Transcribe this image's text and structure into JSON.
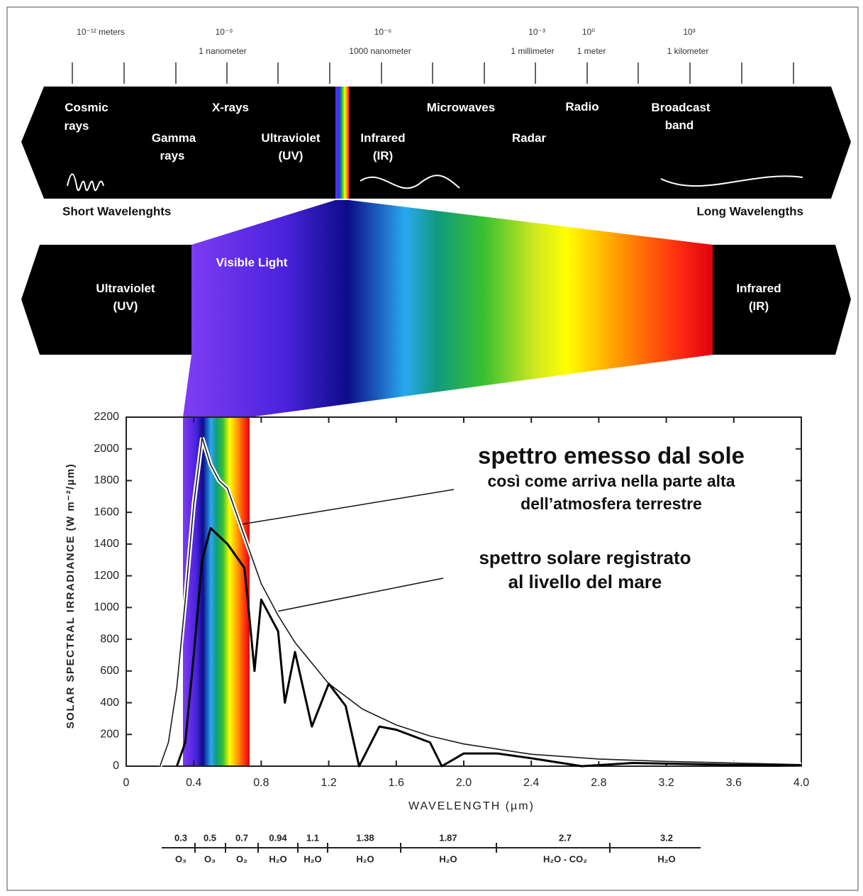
{
  "spectrum": {
    "scale": [
      {
        "power": "10⁻¹² meters"
      },
      {
        "power": "10⁻⁹",
        "unit": "1 nanometer"
      },
      {
        "power": "10⁻⁶",
        "unit": "1000 nanometer"
      },
      {
        "power": "10⁻³",
        "unit": "1 millimeter"
      },
      {
        "power": "10⁰",
        "unit": "1 meter"
      },
      {
        "power": "10³",
        "unit": "1 kilometer"
      }
    ],
    "bands": [
      {
        "lines": [
          "Cosmic",
          "rays"
        ]
      },
      {
        "lines": [
          "X-rays"
        ]
      },
      {
        "lines": [
          "Gamma",
          "rays"
        ]
      },
      {
        "lines": [
          "Ultraviolet",
          "(UV)"
        ]
      },
      {
        "lines": [
          "Infrared",
          "(IR)"
        ]
      },
      {
        "lines": [
          "Microwaves"
        ]
      },
      {
        "lines": [
          "Radar"
        ]
      },
      {
        "lines": [
          "Radio"
        ]
      },
      {
        "lines": [
          "Broadcast",
          "band"
        ]
      }
    ],
    "short": "Short Wavelenghts",
    "long": "Long Wavelengths"
  },
  "visible": {
    "title": "Visible Light",
    "left": [
      "Ultraviolet",
      "(UV)"
    ],
    "right": [
      "Infrared",
      "(IR)"
    ]
  },
  "chart_data": {
    "type": "line",
    "x_label": "WAVELENGTH (µm)",
    "y_label": "SOLAR SPECTRAL IRRADIANCE (W m⁻²/µm)",
    "xlim": [
      0,
      4
    ],
    "ylim": [
      0,
      2200
    ],
    "xticks": [
      0,
      0.4,
      0.8,
      1.2,
      1.6,
      {
        "value": 2,
        "label": "2.0"
      },
      2.4,
      2.8,
      3.2,
      3.6,
      {
        "value": 4,
        "label": "4.0"
      }
    ],
    "yticks": [
      0,
      200,
      400,
      600,
      800,
      1000,
      1200,
      1400,
      1600,
      1800,
      2000,
      2200
    ],
    "annotations": [
      {
        "title": "spettro emesso dal sole",
        "text": [
          "così come arriva nella parte alta",
          "dell’atmosfera terrestre"
        ]
      },
      {
        "title": "spettro solare registrato",
        "text": [
          "al livello del mare"
        ]
      }
    ],
    "series": [
      {
        "color": "#1a1a1a",
        "x": [
          0.2,
          0.25,
          0.3,
          0.35,
          0.4,
          0.45,
          0.5,
          0.55,
          0.6,
          0.7,
          0.8,
          0.9,
          1.0,
          1.2,
          1.4,
          1.6,
          1.8,
          2.0,
          2.4,
          2.8,
          3.2,
          3.6,
          4.0
        ],
        "values": [
          0,
          150,
          500,
          1050,
          1650,
          2070,
          1900,
          1800,
          1750,
          1450,
          1150,
          950,
          780,
          520,
          360,
          260,
          190,
          140,
          75,
          45,
          30,
          20,
          10
        ]
      },
      {
        "color": "#000000",
        "x": [
          0.3,
          0.35,
          0.4,
          0.45,
          0.5,
          0.55,
          0.6,
          0.7,
          0.72,
          0.76,
          0.8,
          0.9,
          0.94,
          1.0,
          1.1,
          1.2,
          1.3,
          1.38,
          1.5,
          1.6,
          1.8,
          1.87,
          2.0,
          2.2,
          2.4,
          2.7,
          3.0,
          3.5,
          4.0
        ],
        "values": [
          0,
          150,
          700,
          1300,
          1500,
          1450,
          1400,
          1250,
          1050,
          600,
          1050,
          850,
          400,
          720,
          250,
          520,
          380,
          0,
          250,
          230,
          150,
          0,
          80,
          80,
          50,
          0,
          20,
          10,
          5
        ]
      }
    ]
  },
  "absorption": [
    {
      "wavelength": "0.3",
      "gas": "O₃"
    },
    {
      "wavelength": "0.5",
      "gas": "O₃"
    },
    {
      "wavelength": "0.7",
      "gas": "O₂"
    },
    {
      "wavelength": "0.94",
      "gas": "H₂O"
    },
    {
      "wavelength": "1.1",
      "gas": "H₂O"
    },
    {
      "wavelength": "1.38",
      "gas": "H₂O"
    },
    {
      "wavelength": "1.87",
      "gas": "H₂O"
    },
    {
      "wavelength": "2.7",
      "gas": "H₂O - CO₂"
    },
    {
      "wavelength": "3.2",
      "gas": "H₂O"
    }
  ]
}
